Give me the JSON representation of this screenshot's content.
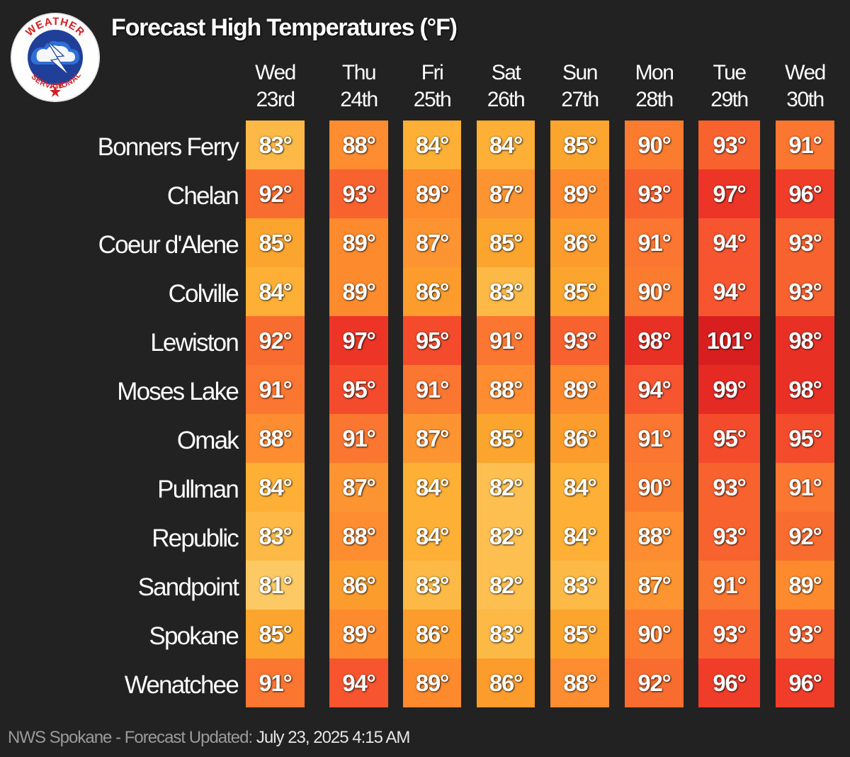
{
  "title": "Forecast High Temperatures (°F)",
  "logo": {
    "top_text": "WEATHER",
    "left_text": "NATIONAL",
    "right_text": "SERVICE",
    "icon": "nws-logo-icon"
  },
  "colors": {
    "background": "#222222",
    "scale": {
      "81": "#fcc965",
      "82": "#fdc050",
      "83": "#fcb945",
      "84": "#fdb035",
      "85": "#fca52e",
      "86": "#fc9c2c",
      "87": "#fc9431",
      "88": "#fd8d30",
      "89": "#fd8b2e",
      "90": "#fb7c2f",
      "91": "#fb7631",
      "92": "#f96c2f",
      "93": "#f8622f",
      "94": "#f65530",
      "95": "#f34b2c",
      "96": "#ef3d2a",
      "97": "#ec3427",
      "98": "#e93025",
      "99": "#e52a24",
      "101": "#d91e1f"
    }
  },
  "chart_data": {
    "type": "heatmap",
    "title": "Forecast High Temperatures (°F)",
    "unit": "°",
    "columns": [
      {
        "day": "Wed",
        "date": "23rd"
      },
      {
        "day": "Thu",
        "date": "24th"
      },
      {
        "day": "Fri",
        "date": "25th"
      },
      {
        "day": "Sat",
        "date": "26th"
      },
      {
        "day": "Sun",
        "date": "27th"
      },
      {
        "day": "Mon",
        "date": "28th"
      },
      {
        "day": "Tue",
        "date": "29th"
      },
      {
        "day": "Wed",
        "date": "30th"
      }
    ],
    "rows": [
      {
        "city": "Bonners Ferry",
        "values": [
          83,
          88,
          84,
          84,
          85,
          90,
          93,
          91
        ]
      },
      {
        "city": "Chelan",
        "values": [
          92,
          93,
          89,
          87,
          89,
          93,
          97,
          96
        ]
      },
      {
        "city": "Coeur d'Alene",
        "values": [
          85,
          89,
          87,
          85,
          86,
          91,
          94,
          93
        ]
      },
      {
        "city": "Colville",
        "values": [
          84,
          89,
          86,
          83,
          85,
          90,
          94,
          93
        ]
      },
      {
        "city": "Lewiston",
        "values": [
          92,
          97,
          95,
          91,
          93,
          98,
          101,
          98
        ]
      },
      {
        "city": "Moses Lake",
        "values": [
          91,
          95,
          91,
          88,
          89,
          94,
          99,
          98
        ]
      },
      {
        "city": "Omak",
        "values": [
          88,
          91,
          87,
          85,
          86,
          91,
          95,
          95
        ]
      },
      {
        "city": "Pullman",
        "values": [
          84,
          87,
          84,
          82,
          84,
          90,
          93,
          91
        ]
      },
      {
        "city": "Republic",
        "values": [
          83,
          88,
          84,
          82,
          84,
          88,
          93,
          92
        ]
      },
      {
        "city": "Sandpoint",
        "values": [
          81,
          86,
          83,
          82,
          83,
          87,
          91,
          89
        ]
      },
      {
        "city": "Spokane",
        "values": [
          85,
          89,
          86,
          83,
          85,
          90,
          93,
          93
        ]
      },
      {
        "city": "Wenatchee",
        "values": [
          91,
          94,
          89,
          86,
          88,
          92,
          96,
          96
        ]
      }
    ]
  },
  "footer": {
    "label": "NWS Spokane - Forecast Updated:",
    "value": "July 23, 2025 4:15 AM"
  }
}
